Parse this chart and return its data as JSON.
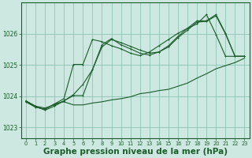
{
  "background_color": "#cde8e0",
  "plot_bg_color": "#cde8e0",
  "grid_color": "#90c4b4",
  "line_color": "#1a5c2a",
  "xlabel": "Graphe pression niveau de la mer (hPa)",
  "xlabel_fontsize": 7.5,
  "ylim": [
    1022.65,
    1027.0
  ],
  "xlim": [
    -0.5,
    23.5
  ],
  "yticks": [
    1023,
    1024,
    1025,
    1026
  ],
  "xticks": [
    0,
    1,
    2,
    3,
    4,
    5,
    6,
    7,
    8,
    9,
    10,
    11,
    12,
    13,
    14,
    15,
    16,
    17,
    18,
    19,
    20,
    21,
    22,
    23
  ],
  "s1_x": [
    0,
    1,
    2,
    3,
    4,
    5,
    6,
    7,
    8,
    9,
    10,
    11,
    12,
    13,
    14,
    15,
    16,
    17,
    18,
    19,
    20,
    21,
    22,
    23
  ],
  "s1_y": [
    1023.85,
    1023.68,
    1023.62,
    1023.72,
    1023.85,
    1024.05,
    1024.38,
    1024.85,
    1025.58,
    1025.82,
    1025.72,
    1025.6,
    1025.48,
    1025.38,
    1025.42,
    1025.58,
    1025.88,
    1026.12,
    1026.38,
    1026.4,
    1026.58,
    1026.0,
    1025.28,
    1025.28
  ],
  "s2_x": [
    0,
    1,
    2,
    3,
    4,
    5,
    6,
    7,
    8,
    9,
    10,
    11,
    12,
    13,
    14,
    15,
    16,
    17,
    18,
    19,
    20,
    21,
    22,
    23
  ],
  "s2_y": [
    1023.85,
    1023.68,
    1023.55,
    1023.68,
    1023.85,
    1024.02,
    1024.02,
    1024.85,
    1025.65,
    1025.85,
    1025.65,
    1025.52,
    1025.38,
    1025.32,
    1025.42,
    1025.62,
    1025.92,
    1026.18,
    1026.42,
    1026.42,
    1026.62,
    1026.02,
    1025.28,
    1025.28
  ],
  "s3_x": [
    0,
    1,
    2,
    3,
    4,
    5,
    6,
    7,
    8,
    9,
    10,
    11,
    12,
    13,
    14,
    15,
    16,
    17,
    18,
    19,
    20,
    21,
    22,
    23
  ],
  "s3_y": [
    1023.82,
    1023.65,
    1023.58,
    1023.75,
    1023.82,
    1023.72,
    1023.72,
    1023.78,
    1023.82,
    1023.88,
    1023.92,
    1023.98,
    1024.08,
    1024.12,
    1024.18,
    1024.22,
    1024.32,
    1024.42,
    1024.58,
    1024.72,
    1024.88,
    1024.98,
    1025.08,
    1025.22
  ],
  "s4_x": [
    0,
    1,
    2,
    3,
    4,
    5,
    6,
    7,
    8,
    9,
    10,
    11,
    12,
    13,
    14,
    15,
    16,
    17,
    18,
    19,
    20,
    21,
    22,
    23
  ],
  "s4_y": [
    1023.82,
    1023.65,
    1023.58,
    1023.75,
    1023.92,
    1025.02,
    1025.02,
    1025.82,
    1025.75,
    1025.62,
    1025.52,
    1025.38,
    1025.3,
    1025.42,
    1025.62,
    1025.82,
    1026.02,
    1026.18,
    1026.32,
    1026.62,
    1025.98,
    1025.28,
    1025.28,
    1025.28
  ]
}
